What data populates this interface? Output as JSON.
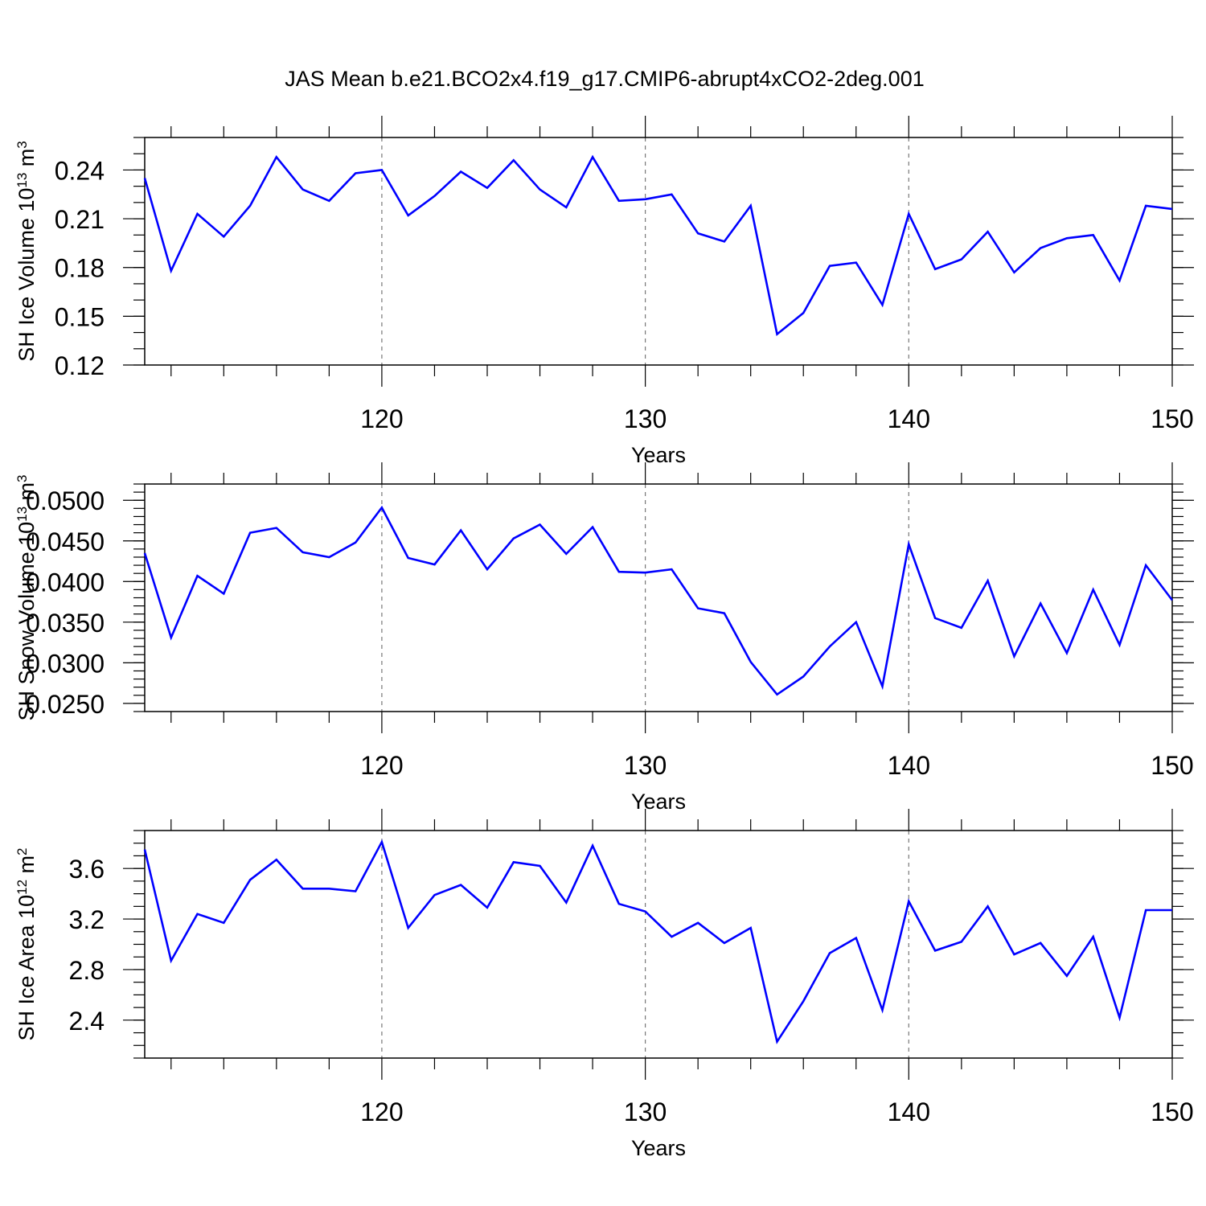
{
  "figure": {
    "title": "JAS Mean b.e21.BCO2x4.f19_g17.CMIP6-abrupt4xCO2-2deg.001",
    "line_color": "#0000ff"
  },
  "chart_data": [
    {
      "type": "line",
      "title": "JAS Mean b.e21.BCO2x4.f19_g17.CMIP6-abrupt4xCO2-2deg.001",
      "ylabel": {
        "base": "SH Ice Volume 10",
        "exp": "13",
        "unit": " m",
        "unit_exp": "3"
      },
      "xlabel": "Years",
      "xlim": [
        111,
        150
      ],
      "ylim": [
        0.12,
        0.26
      ],
      "xticks": [
        120,
        130,
        140,
        150
      ],
      "xtick_labels": [
        "120",
        "130",
        "140",
        "150"
      ],
      "yticks": [
        0.12,
        0.15,
        0.18,
        0.21,
        0.24
      ],
      "ytick_labels": [
        "0.12",
        "0.15",
        "0.18",
        "0.21",
        "0.24"
      ],
      "yminor_step": 0.01,
      "gridlines_x": [
        120,
        130,
        140
      ],
      "x": [
        111,
        112,
        113,
        114,
        115,
        116,
        117,
        118,
        119,
        120,
        121,
        122,
        123,
        124,
        125,
        126,
        127,
        128,
        129,
        130,
        131,
        132,
        133,
        134,
        135,
        136,
        137,
        138,
        139,
        140,
        141,
        142,
        143,
        144,
        145,
        146,
        147,
        148,
        149,
        150
      ],
      "values": [
        0.235,
        0.178,
        0.213,
        0.199,
        0.218,
        0.248,
        0.228,
        0.221,
        0.238,
        0.24,
        0.212,
        0.224,
        0.239,
        0.229,
        0.246,
        0.228,
        0.217,
        0.248,
        0.221,
        0.222,
        0.225,
        0.201,
        0.196,
        0.218,
        0.139,
        0.152,
        0.181,
        0.183,
        0.157,
        0.213,
        0.179,
        0.185,
        0.202,
        0.177,
        0.192,
        0.198,
        0.2,
        0.172,
        0.218,
        0.216
      ]
    },
    {
      "type": "line",
      "ylabel": {
        "base": "SH Snow Volume 10",
        "exp": "13",
        "unit": " m",
        "unit_exp": "3"
      },
      "xlabel": "Years",
      "xlim": [
        111,
        150
      ],
      "ylim": [
        0.024,
        0.052
      ],
      "xticks": [
        120,
        130,
        140,
        150
      ],
      "xtick_labels": [
        "120",
        "130",
        "140",
        "150"
      ],
      "yticks": [
        0.025,
        0.03,
        0.035,
        0.04,
        0.045,
        0.05
      ],
      "ytick_labels": [
        "0.0250",
        "0.0300",
        "0.0350",
        "0.0400",
        "0.0450",
        "0.0500"
      ],
      "yminor_step": 0.001,
      "gridlines_x": [
        120,
        130,
        140
      ],
      "x": [
        111,
        112,
        113,
        114,
        115,
        116,
        117,
        118,
        119,
        120,
        121,
        122,
        123,
        124,
        125,
        126,
        127,
        128,
        129,
        130,
        131,
        132,
        133,
        134,
        135,
        136,
        137,
        138,
        139,
        140,
        141,
        142,
        143,
        144,
        145,
        146,
        147,
        148,
        149,
        150
      ],
      "values": [
        0.0435,
        0.0331,
        0.0407,
        0.0385,
        0.046,
        0.0466,
        0.0436,
        0.043,
        0.0448,
        0.0491,
        0.0429,
        0.0421,
        0.0463,
        0.0415,
        0.0453,
        0.047,
        0.0434,
        0.0467,
        0.0412,
        0.0411,
        0.0415,
        0.0367,
        0.0361,
        0.0301,
        0.0261,
        0.0283,
        0.032,
        0.035,
        0.0271,
        0.0446,
        0.0355,
        0.0343,
        0.0401,
        0.0308,
        0.0373,
        0.0312,
        0.039,
        0.0322,
        0.042,
        0.0377
      ]
    },
    {
      "type": "line",
      "ylabel": {
        "base": "SH Ice Area 10",
        "exp": "12",
        "unit": " m",
        "unit_exp": "2"
      },
      "xlabel": "Years",
      "xlim": [
        111,
        150
      ],
      "ylim": [
        2.1,
        3.9
      ],
      "xticks": [
        120,
        130,
        140,
        150
      ],
      "xtick_labels": [
        "120",
        "130",
        "140",
        "150"
      ],
      "yticks": [
        2.4,
        2.8,
        3.2,
        3.6
      ],
      "ytick_labels": [
        "2.4",
        "2.8",
        "3.2",
        "3.6"
      ],
      "yminor_step": 0.1,
      "gridlines_x": [
        120,
        130,
        140
      ],
      "x": [
        111,
        112,
        113,
        114,
        115,
        116,
        117,
        118,
        119,
        120,
        121,
        122,
        123,
        124,
        125,
        126,
        127,
        128,
        129,
        130,
        131,
        132,
        133,
        134,
        135,
        136,
        137,
        138,
        139,
        140,
        141,
        142,
        143,
        144,
        145,
        146,
        147,
        148,
        149,
        150
      ],
      "values": [
        3.75,
        2.87,
        3.24,
        3.17,
        3.51,
        3.67,
        3.44,
        3.44,
        3.42,
        3.81,
        3.13,
        3.39,
        3.47,
        3.29,
        3.65,
        3.62,
        3.33,
        3.78,
        3.32,
        3.26,
        3.06,
        3.17,
        3.01,
        3.13,
        2.23,
        2.55,
        2.93,
        3.05,
        2.48,
        3.34,
        2.95,
        3.02,
        3.3,
        2.92,
        3.01,
        2.75,
        3.06,
        2.42,
        3.27,
        3.27
      ]
    }
  ]
}
